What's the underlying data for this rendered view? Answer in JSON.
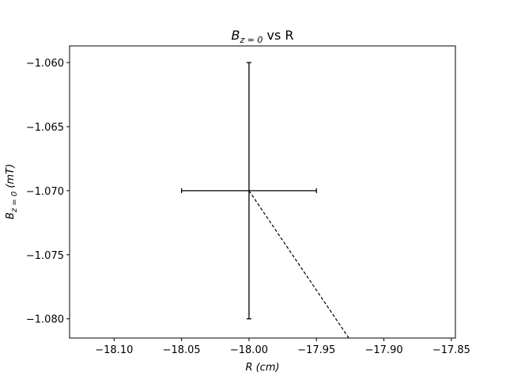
{
  "chart_data": {
    "type": "scatter",
    "title": {
      "main": "B",
      "sub": "z = 0",
      "suffix": " vs R"
    },
    "xlabel": "R (cm)",
    "ylabel": {
      "main": "B",
      "sub": "z = 0",
      "suffix": " (mT)"
    },
    "xlim": [
      -18.133,
      -17.847
    ],
    "ylim": [
      -1.0815,
      -1.0587
    ],
    "x_ticks": [
      -18.1,
      -18.05,
      -18.0,
      -17.95,
      -17.9,
      -17.85
    ],
    "x_tick_labels": [
      "−18.10",
      "−18.05",
      "−18.00",
      "−17.95",
      "−17.90",
      "−17.85"
    ],
    "y_ticks": [
      -1.06,
      -1.065,
      -1.07,
      -1.075,
      -1.08
    ],
    "y_tick_labels": [
      "−1.060",
      "−1.065",
      "−1.070",
      "−1.075",
      "−1.080"
    ],
    "grid": false,
    "points": [
      {
        "x": -18.0,
        "y": -1.07,
        "xerr": 0.05,
        "yerr": 0.01
      }
    ],
    "fit_line": {
      "style": "dashed",
      "x": [
        -18.0,
        -17.926
      ],
      "y": [
        -1.07,
        -1.0815
      ]
    },
    "colors": {
      "marks": "#000000",
      "background": "#ffffff"
    }
  }
}
